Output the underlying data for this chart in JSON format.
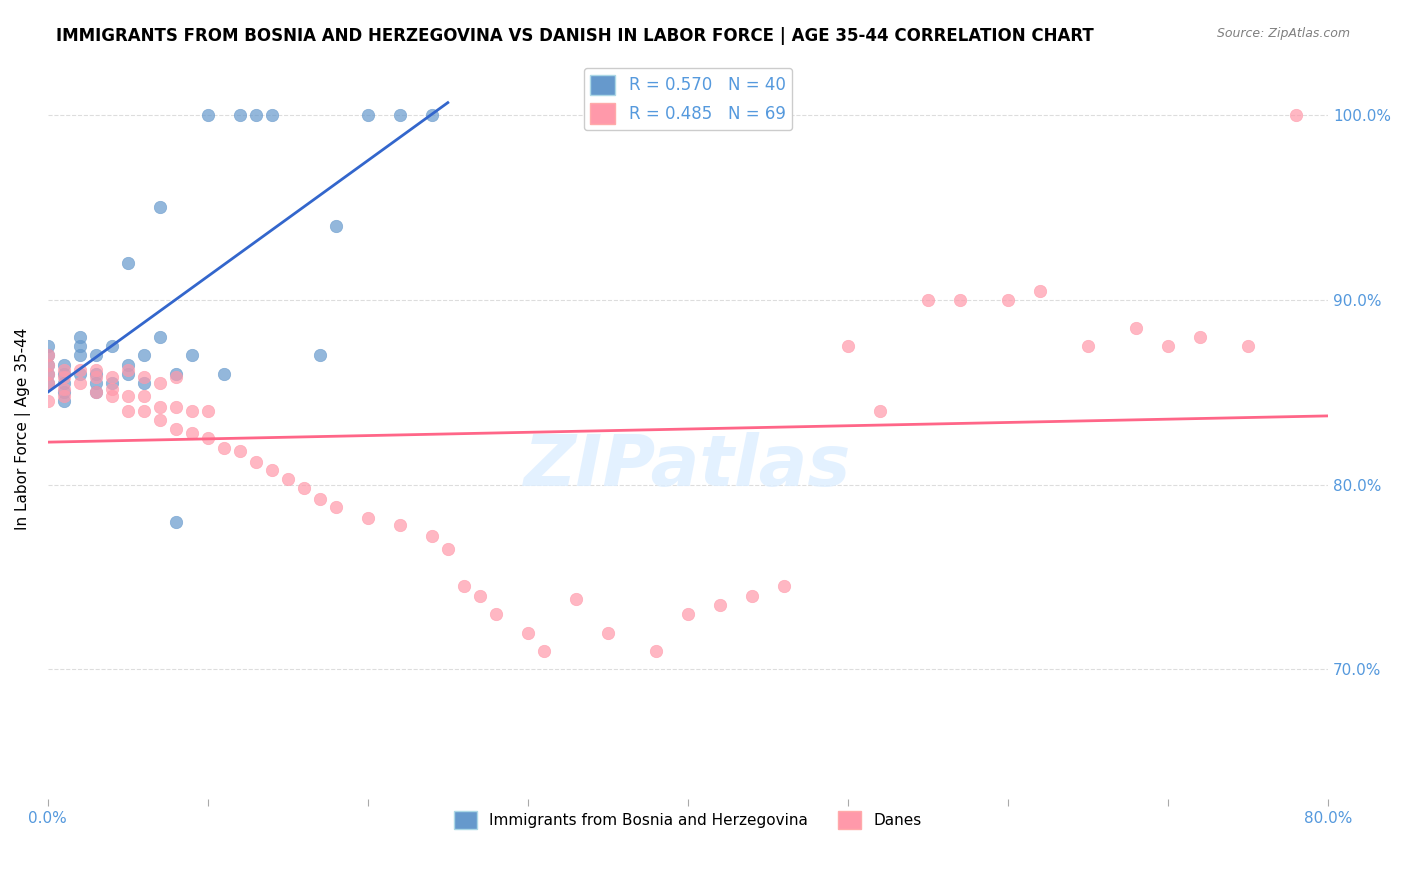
{
  "title": "IMMIGRANTS FROM BOSNIA AND HERZEGOVINA VS DANISH IN LABOR FORCE | AGE 35-44 CORRELATION CHART",
  "source": "Source: ZipAtlas.com",
  "ylabel": "In Labor Force | Age 35-44",
  "xlabel": "",
  "xlim": [
    0.0,
    0.8
  ],
  "ylim": [
    0.63,
    1.03
  ],
  "xticks": [
    0.0,
    0.1,
    0.2,
    0.3,
    0.4,
    0.5,
    0.6,
    0.7,
    0.8
  ],
  "yticks": [
    0.7,
    0.8,
    0.9,
    1.0
  ],
  "ytick_labels": [
    "70.0%",
    "80.0%",
    "90.0%",
    "100.0%"
  ],
  "xtick_labels": [
    "0.0%",
    "",
    "",
    "",
    "",
    "",
    "",
    "",
    "80.0%"
  ],
  "blue_R": 0.57,
  "blue_N": 40,
  "pink_R": 0.485,
  "pink_N": 69,
  "blue_color": "#6699CC",
  "pink_color": "#FF99AA",
  "blue_line_color": "#3366CC",
  "pink_line_color": "#FF6688",
  "axis_color": "#5599DD",
  "watermark": "ZIPatlas",
  "blue_points_x": [
    0.0,
    0.0,
    0.0,
    0.0,
    0.0,
    0.01,
    0.01,
    0.01,
    0.01,
    0.01,
    0.02,
    0.02,
    0.02,
    0.02,
    0.03,
    0.03,
    0.03,
    0.03,
    0.04,
    0.04,
    0.05,
    0.05,
    0.05,
    0.06,
    0.06,
    0.07,
    0.07,
    0.08,
    0.08,
    0.09,
    0.1,
    0.11,
    0.12,
    0.13,
    0.14,
    0.17,
    0.18,
    0.2,
    0.22,
    0.24
  ],
  "blue_points_y": [
    0.855,
    0.86,
    0.865,
    0.87,
    0.875,
    0.845,
    0.85,
    0.855,
    0.86,
    0.865,
    0.86,
    0.87,
    0.875,
    0.88,
    0.85,
    0.855,
    0.86,
    0.87,
    0.855,
    0.875,
    0.86,
    0.865,
    0.92,
    0.855,
    0.87,
    0.88,
    0.95,
    0.86,
    0.78,
    0.87,
    1.0,
    0.86,
    1.0,
    1.0,
    1.0,
    0.87,
    0.94,
    1.0,
    1.0,
    1.0
  ],
  "pink_points_x": [
    0.0,
    0.0,
    0.0,
    0.0,
    0.0,
    0.01,
    0.01,
    0.01,
    0.01,
    0.02,
    0.02,
    0.03,
    0.03,
    0.03,
    0.04,
    0.04,
    0.04,
    0.05,
    0.05,
    0.05,
    0.06,
    0.06,
    0.06,
    0.07,
    0.07,
    0.07,
    0.08,
    0.08,
    0.08,
    0.09,
    0.09,
    0.1,
    0.1,
    0.11,
    0.12,
    0.13,
    0.14,
    0.15,
    0.16,
    0.17,
    0.18,
    0.2,
    0.22,
    0.24,
    0.25,
    0.26,
    0.27,
    0.28,
    0.3,
    0.31,
    0.33,
    0.35,
    0.38,
    0.4,
    0.42,
    0.44,
    0.46,
    0.5,
    0.52,
    0.55,
    0.57,
    0.6,
    0.62,
    0.65,
    0.68,
    0.7,
    0.72,
    0.75,
    0.78
  ],
  "pink_points_y": [
    0.845,
    0.855,
    0.86,
    0.865,
    0.87,
    0.848,
    0.852,
    0.858,
    0.862,
    0.855,
    0.862,
    0.85,
    0.858,
    0.862,
    0.848,
    0.852,
    0.858,
    0.84,
    0.848,
    0.862,
    0.84,
    0.848,
    0.858,
    0.835,
    0.842,
    0.855,
    0.83,
    0.842,
    0.858,
    0.828,
    0.84,
    0.825,
    0.84,
    0.82,
    0.818,
    0.812,
    0.808,
    0.803,
    0.798,
    0.792,
    0.788,
    0.782,
    0.778,
    0.772,
    0.765,
    0.745,
    0.74,
    0.73,
    0.72,
    0.71,
    0.738,
    0.72,
    0.71,
    0.73,
    0.735,
    0.74,
    0.745,
    0.875,
    0.84,
    0.9,
    0.9,
    0.9,
    0.905,
    0.875,
    0.885,
    0.875,
    0.88,
    0.875,
    1.0
  ]
}
